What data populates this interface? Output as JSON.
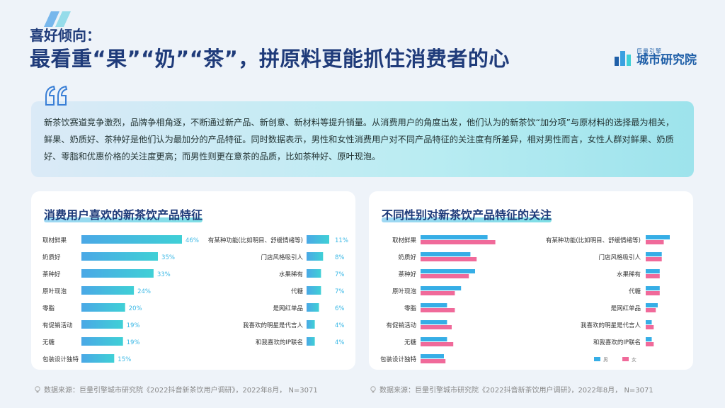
{
  "header": {
    "subtitle": "喜好倾向：",
    "title": "最看重“果”“奶”“茶”，拼原料更能抓住消费者的心"
  },
  "brand": {
    "small": "巨量引擎",
    "name": "城市研究院",
    "color": "#1f5fa8"
  },
  "quote": {
    "text": "新茶饮赛道竞争激烈，品牌争相角逐，不断通过新产品、新创意、新材料等提升销量。从消费用户的角度出发，他们认为的新茶饮“加分项”与原材料的选择最为相关，鲜果、奶质好、茶种好是他们认为最加分的产品特征。同时数据表示，男性和女性消费用户对不同产品特征的关注度有所差异，相对男性而言，女性人群对鲜果、奶质好、零脂和优惠价格的关注度更高；而男性则更在意茶的品质，比如茶种好、原叶现泡。"
  },
  "left_panel": {
    "title": "消费用户喜欢的新茶饮产品特征"
  },
  "right_panel": {
    "title": "不同性别对新茶饮产品特征的关注"
  },
  "sources": {
    "left": "数据来源：巨量引擎城市研究院《2022抖音新茶饮用户调研》，2022年8月， N=3071",
    "right": "数据来源：巨量引擎城市研究院《2022抖音新茶饮用户调研》，2022年8月， N=3071"
  },
  "colors": {
    "bar_start": "#4aa8e6",
    "bar_end": "#3fd0d6",
    "male": "#36aee6",
    "female": "#f06a9a",
    "value_text": "#3ab8e6"
  },
  "chart_data": [
    {
      "type": "bar",
      "orientation": "horizontal",
      "title": "消费用户喜欢的新茶饮产品特征",
      "groups": [
        {
          "categories": [
            "取材鲜果",
            "奶质好",
            "茶种好",
            "原叶现泡",
            "零脂",
            "有促销活动",
            "无糖",
            "包装设计独特"
          ],
          "values": [
            46,
            35,
            33,
            24,
            20,
            19,
            19,
            15
          ],
          "labels": [
            "46%",
            "35%",
            "33%",
            "24%",
            "20%",
            "19%",
            "19%",
            "15%"
          ]
        },
        {
          "categories": [
            "有某种功能(比如明目、舒缓情绪等)",
            "门店风格吸引人",
            "水果稀有",
            "代糖",
            "是网红单品",
            "我喜欢的明星是代言人",
            "和我喜欢的IP联名"
          ],
          "values": [
            11,
            8,
            7,
            7,
            6,
            4,
            4
          ],
          "labels": [
            "11%",
            "8%",
            "7%",
            "7%",
            "6%",
            "4%",
            "4%"
          ]
        }
      ],
      "unit": "%"
    },
    {
      "type": "bar",
      "orientation": "horizontal",
      "title": "不同性别对新茶饮产品特征的关注",
      "series": [
        {
          "name": "男",
          "color": "#36aee6"
        },
        {
          "name": "女",
          "color": "#f06a9a"
        }
      ],
      "groups": [
        {
          "categories": [
            "取材鲜果",
            "奶质好",
            "茶种好",
            "原叶现泡",
            "零脂",
            "有促销活动",
            "无糖",
            "包装设计独特"
          ],
          "male": [
            43,
            32,
            35,
            26,
            17,
            17,
            17,
            15
          ],
          "female": [
            48,
            36,
            31,
            22,
            22,
            20,
            21,
            16
          ]
        },
        {
          "categories": [
            "有某种功能(比如明目、舒缓情绪等)",
            "门店风格吸引人",
            "水果稀有",
            "代糖",
            "是网红单品",
            "我喜欢的明星是代言人",
            "和我喜欢的IP联名"
          ],
          "male": [
            12,
            8,
            7,
            7,
            6,
            3,
            3
          ],
          "female": [
            9,
            8,
            7,
            7,
            5,
            4,
            4
          ]
        }
      ]
    }
  ]
}
